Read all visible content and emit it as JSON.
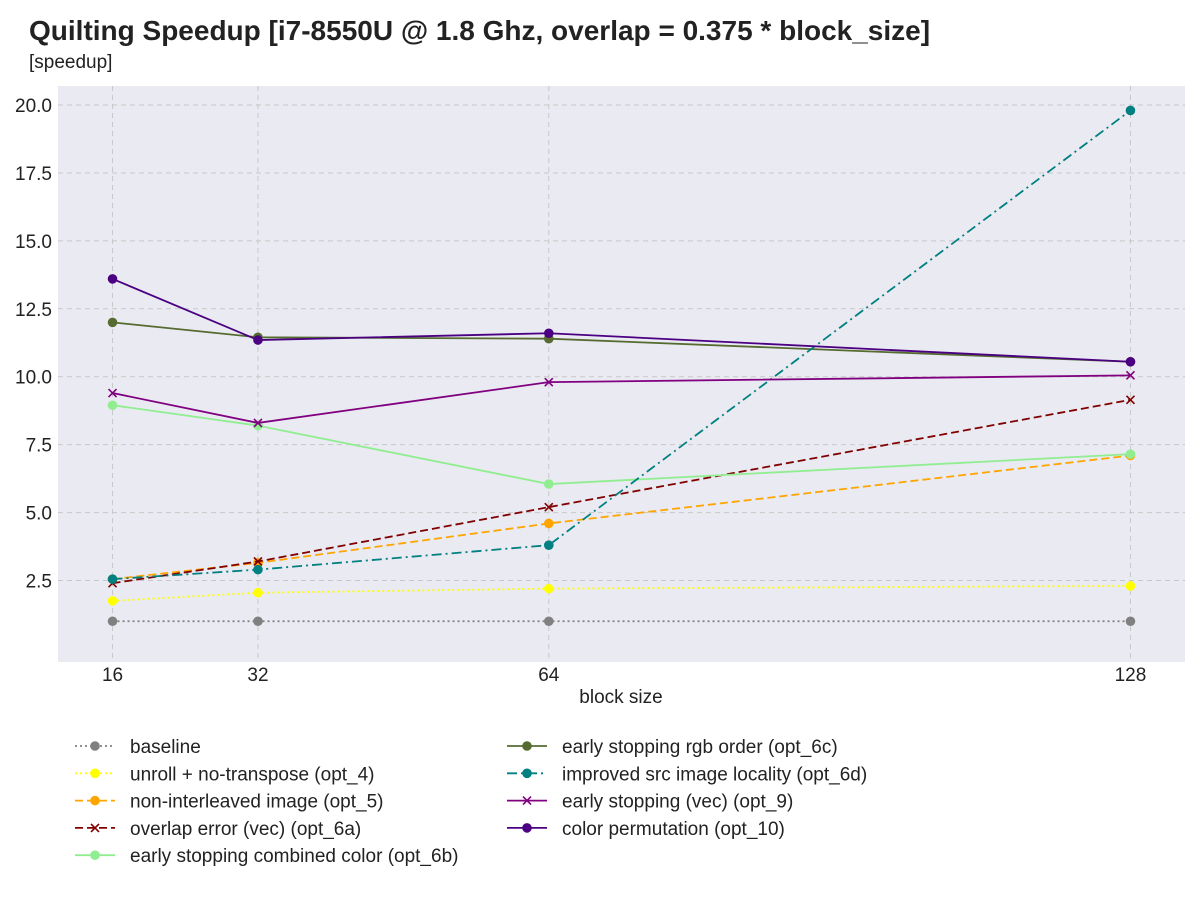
{
  "chart_data": {
    "type": "line",
    "title": "Quilting Speedup [i7-8550U @ 1.8 Ghz, overlap = 0.375 * block_size]",
    "ylabel": "[speedup]",
    "xlabel": "block size",
    "x": [
      16,
      32,
      64,
      128
    ],
    "xlim": [
      10,
      134
    ],
    "ylim": [
      -0.5,
      20.7
    ],
    "yticks": [
      "2.5",
      "5.0",
      "7.5",
      "10.0",
      "12.5",
      "15.0",
      "17.5",
      "20.0"
    ],
    "xticks": [
      "16",
      "32",
      "64",
      "128"
    ],
    "grid": true,
    "legend_position": "bottom",
    "series": [
      {
        "name": "baseline",
        "values": [
          1.0,
          1.0,
          1.0,
          1.0
        ],
        "color": "#808080",
        "dash": "dotted",
        "marker": "circle"
      },
      {
        "name": "unroll + no-transpose (opt_4)",
        "values": [
          1.75,
          2.05,
          2.2,
          2.3
        ],
        "color": "#ffff00",
        "dash": "dotted",
        "marker": "circle"
      },
      {
        "name": "non-interleaved image (opt_5)",
        "values": [
          2.55,
          3.15,
          4.6,
          7.1
        ],
        "color": "#ffa500",
        "dash": "dashed",
        "marker": "circle"
      },
      {
        "name": "overlap error (vec) (opt_6a)",
        "values": [
          2.4,
          3.2,
          5.2,
          9.15
        ],
        "color": "#800000",
        "dash": "dashed",
        "marker": "x"
      },
      {
        "name": "early stopping combined color (opt_6b)",
        "values": [
          8.95,
          8.2,
          6.05,
          7.15
        ],
        "color": "#90ee90",
        "dash": "solid",
        "marker": "circle"
      },
      {
        "name": "early stopping rgb order (opt_6c)",
        "values": [
          12.0,
          11.45,
          11.4,
          10.55
        ],
        "color": "#556b2f",
        "dash": "solid",
        "marker": "circle"
      },
      {
        "name": "improved src image locality (opt_6d)",
        "values": [
          2.55,
          2.9,
          3.8,
          19.8
        ],
        "color": "#008080",
        "dash": "dashdot",
        "marker": "circle"
      },
      {
        "name": "early stopping (vec) (opt_9)",
        "values": [
          9.4,
          8.3,
          9.8,
          10.05
        ],
        "color": "#800080",
        "dash": "solid",
        "marker": "x"
      },
      {
        "name": "color permutation (opt_10)",
        "values": [
          13.6,
          11.35,
          11.6,
          10.55
        ],
        "color": "#4b0082",
        "dash": "solid",
        "marker": "circle"
      }
    ]
  }
}
